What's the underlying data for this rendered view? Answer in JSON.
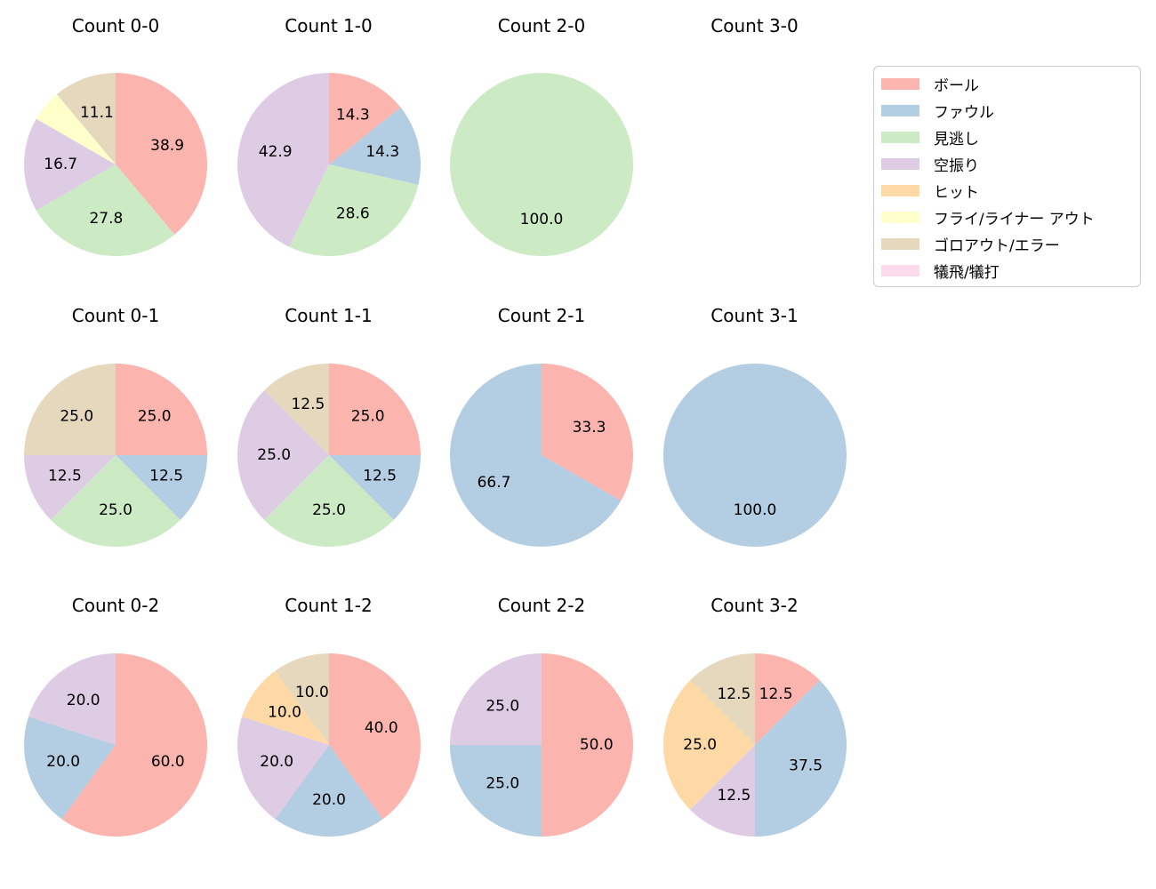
{
  "figure": {
    "background": "#ffffff",
    "text_color": "#000000"
  },
  "legend": {
    "position": "top-right",
    "border_color": "#cccccc",
    "items": [
      {
        "label": "ボール",
        "color": "#fbb4ae"
      },
      {
        "label": "ファウル",
        "color": "#b3cde3"
      },
      {
        "label": "見逃し",
        "color": "#ccebc5"
      },
      {
        "label": "空振り",
        "color": "#decbe4"
      },
      {
        "label": "ヒット",
        "color": "#fed9a6"
      },
      {
        "label": "フライ/ライナー アウト",
        "color": "#ffffcc"
      },
      {
        "label": "ゴロアウト/エラー",
        "color": "#e5d8bd"
      },
      {
        "label": "犠飛/犠打",
        "color": "#fddaec"
      }
    ]
  },
  "chart_data": [
    {
      "type": "pie",
      "title": "Count 0-0",
      "start_angle": "top",
      "direction": "clockwise",
      "label_distance": 0.6,
      "slices": [
        {
          "label": "ボール",
          "value": 38.9,
          "display": "38.9"
        },
        {
          "label": "見逃し",
          "value": 27.8,
          "display": "27.8"
        },
        {
          "label": "空振り",
          "value": 16.7,
          "display": "16.7"
        },
        {
          "label": "フライ/ライナー アウト",
          "value": 5.6,
          "display": ""
        },
        {
          "label": "ゴロアウト/エラー",
          "value": 11.1,
          "display": "11.1"
        }
      ]
    },
    {
      "type": "pie",
      "title": "Count 1-0",
      "start_angle": "top",
      "direction": "clockwise",
      "label_distance": 0.6,
      "slices": [
        {
          "label": "ボール",
          "value": 14.3,
          "display": "14.3"
        },
        {
          "label": "ファウル",
          "value": 14.3,
          "display": "14.3"
        },
        {
          "label": "見逃し",
          "value": 28.6,
          "display": "28.6"
        },
        {
          "label": "空振り",
          "value": 42.9,
          "display": "42.9"
        }
      ]
    },
    {
      "type": "pie",
      "title": "Count 2-0",
      "start_angle": "top",
      "direction": "clockwise",
      "label_distance": 0.6,
      "slices": [
        {
          "label": "見逃し",
          "value": 100.0,
          "display": "100.0"
        }
      ]
    },
    {
      "type": "pie",
      "title": "Count 3-0",
      "start_angle": "top",
      "direction": "clockwise",
      "label_distance": 0.6,
      "slices": []
    },
    {
      "type": "pie",
      "title": "Count 0-1",
      "start_angle": "top",
      "direction": "clockwise",
      "label_distance": 0.6,
      "slices": [
        {
          "label": "ボール",
          "value": 25.0,
          "display": "25.0"
        },
        {
          "label": "ファウル",
          "value": 12.5,
          "display": "12.5"
        },
        {
          "label": "見逃し",
          "value": 25.0,
          "display": "25.0"
        },
        {
          "label": "空振り",
          "value": 12.5,
          "display": "12.5"
        },
        {
          "label": "ゴロアウト/エラー",
          "value": 25.0,
          "display": "25.0"
        }
      ]
    },
    {
      "type": "pie",
      "title": "Count 1-1",
      "start_angle": "top",
      "direction": "clockwise",
      "label_distance": 0.6,
      "slices": [
        {
          "label": "ボール",
          "value": 25.0,
          "display": "25.0"
        },
        {
          "label": "ファウル",
          "value": 12.5,
          "display": "12.5"
        },
        {
          "label": "見逃し",
          "value": 25.0,
          "display": "25.0"
        },
        {
          "label": "空振り",
          "value": 25.0,
          "display": "25.0"
        },
        {
          "label": "ゴロアウト/エラー",
          "value": 12.5,
          "display": "12.5"
        }
      ]
    },
    {
      "type": "pie",
      "title": "Count 2-1",
      "start_angle": "top",
      "direction": "clockwise",
      "label_distance": 0.6,
      "slices": [
        {
          "label": "ボール",
          "value": 33.3,
          "display": "33.3"
        },
        {
          "label": "ファウル",
          "value": 66.7,
          "display": "66.7"
        }
      ]
    },
    {
      "type": "pie",
      "title": "Count 3-1",
      "start_angle": "top",
      "direction": "clockwise",
      "label_distance": 0.6,
      "slices": [
        {
          "label": "ファウル",
          "value": 100.0,
          "display": "100.0"
        }
      ]
    },
    {
      "type": "pie",
      "title": "Count 0-2",
      "start_angle": "top",
      "direction": "clockwise",
      "label_distance": 0.6,
      "slices": [
        {
          "label": "ボール",
          "value": 60.0,
          "display": "60.0"
        },
        {
          "label": "ファウル",
          "value": 20.0,
          "display": "20.0"
        },
        {
          "label": "空振り",
          "value": 20.0,
          "display": "20.0"
        }
      ]
    },
    {
      "type": "pie",
      "title": "Count 1-2",
      "start_angle": "top",
      "direction": "clockwise",
      "label_distance": 0.6,
      "slices": [
        {
          "label": "ボール",
          "value": 40.0,
          "display": "40.0"
        },
        {
          "label": "ファウル",
          "value": 20.0,
          "display": "20.0"
        },
        {
          "label": "空振り",
          "value": 20.0,
          "display": "20.0"
        },
        {
          "label": "ヒット",
          "value": 10.0,
          "display": "10.0"
        },
        {
          "label": "ゴロアウト/エラー",
          "value": 10.0,
          "display": "10.0"
        }
      ]
    },
    {
      "type": "pie",
      "title": "Count 2-2",
      "start_angle": "top",
      "direction": "clockwise",
      "label_distance": 0.6,
      "slices": [
        {
          "label": "ボール",
          "value": 50.0,
          "display": "50.0"
        },
        {
          "label": "ファウル",
          "value": 25.0,
          "display": "25.0"
        },
        {
          "label": "空振り",
          "value": 25.0,
          "display": "25.0"
        }
      ]
    },
    {
      "type": "pie",
      "title": "Count 3-2",
      "start_angle": "top",
      "direction": "clockwise",
      "label_distance": 0.6,
      "slices": [
        {
          "label": "ボール",
          "value": 12.5,
          "display": "12.5"
        },
        {
          "label": "ファウル",
          "value": 37.5,
          "display": "37.5"
        },
        {
          "label": "空振り",
          "value": 12.5,
          "display": "12.5"
        },
        {
          "label": "ヒット",
          "value": 25.0,
          "display": "25.0"
        },
        {
          "label": "ゴロアウト/エラー",
          "value": 12.5,
          "display": "12.5"
        }
      ]
    }
  ]
}
